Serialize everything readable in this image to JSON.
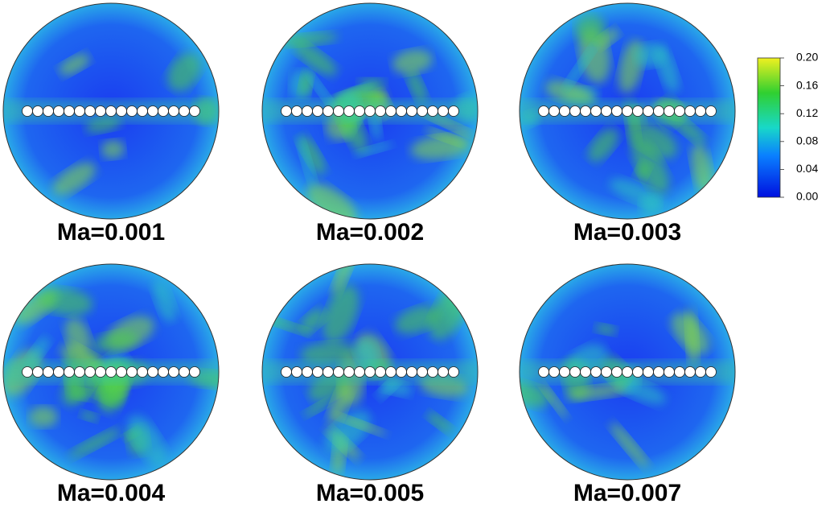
{
  "panels": [
    {
      "label": "Ma=0.001"
    },
    {
      "label": "Ma=0.002"
    },
    {
      "label": "Ma=0.003"
    },
    {
      "label": "Ma=0.004"
    },
    {
      "label": "Ma=0.005"
    },
    {
      "label": "Ma=0.007"
    }
  ],
  "colorbar": {
    "lim": [
      0,
      0.2
    ],
    "ticks": [
      {
        "value": 0.2,
        "label": "0.20"
      },
      {
        "value": 0.16,
        "label": "0.16"
      },
      {
        "value": 0.12,
        "label": "0.12"
      },
      {
        "value": 0.08,
        "label": "0.08"
      },
      {
        "value": 0.04,
        "label": "0.04"
      },
      {
        "value": 0,
        "label": "0.00"
      }
    ]
  }
}
